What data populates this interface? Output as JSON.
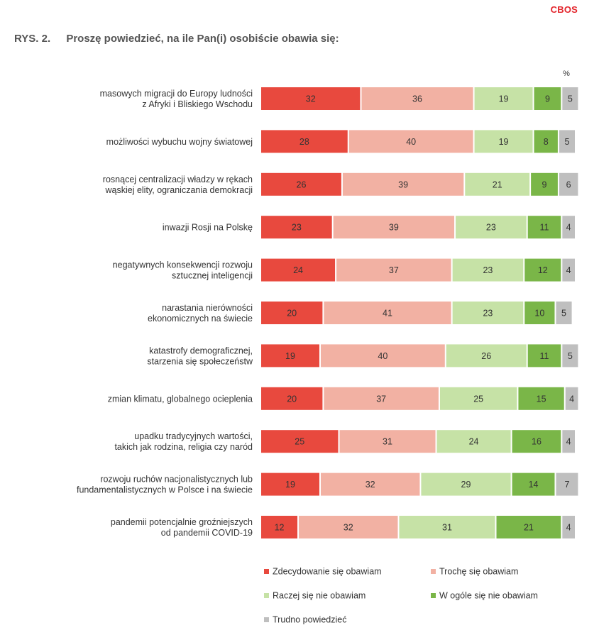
{
  "header": {
    "brand": "CBOS",
    "figure_number": "RYS. 2.",
    "title": "Proszę powiedzieć, na ile Pan(i) osobiście obawia się:"
  },
  "chart_data": {
    "type": "bar",
    "orientation": "horizontal",
    "stacked": true,
    "unit": "%",
    "categories": [
      [
        "masowych migracji do Europy ludności",
        "z Afryki i Bliskiego Wschodu"
      ],
      [
        "możliwości wybuchu wojny światowej"
      ],
      [
        "rosnącej centralizacji władzy w rękach",
        "wąskiej elity, ograniczania demokracji"
      ],
      [
        "inwazji Rosji na Polskę"
      ],
      [
        "negatywnych konsekwencji rozwoju",
        "sztucznej inteligencji"
      ],
      [
        "narastania nierówności",
        "ekonomicznych na świecie"
      ],
      [
        "katastrofy demograficznej,",
        "starzenia się społeczeństw"
      ],
      [
        "zmian klimatu, globalnego ocieplenia"
      ],
      [
        "upadku tradycyjnych wartości,",
        "takich jak rodzina, religia czy naród"
      ],
      [
        "rozwoju ruchów nacjonalistycznych lub",
        "fundamentalistycznych w Polsce i na świecie"
      ],
      [
        "pandemii potencjalnie groźniejszych",
        "od pandemii COVID-19"
      ]
    ],
    "series": [
      {
        "name": "Zdecydowanie się obawiam",
        "color": "#e8493e",
        "values": [
          32,
          28,
          26,
          23,
          24,
          20,
          19,
          20,
          25,
          19,
          12
        ]
      },
      {
        "name": "Trochę się obawiam",
        "color": "#f2b1a3",
        "values": [
          36,
          40,
          39,
          39,
          37,
          41,
          40,
          37,
          31,
          32,
          32
        ]
      },
      {
        "name": "Raczej się nie obawiam",
        "color": "#c6e2a6",
        "values": [
          19,
          19,
          21,
          23,
          23,
          23,
          26,
          25,
          24,
          29,
          31
        ]
      },
      {
        "name": "W ogóle się nie obawiam",
        "color": "#7ab648",
        "values": [
          9,
          8,
          9,
          11,
          12,
          10,
          11,
          15,
          16,
          14,
          21
        ]
      },
      {
        "name": "Trudno powiedzieć",
        "color": "#bfbfbf",
        "values": [
          5,
          5,
          6,
          4,
          4,
          5,
          5,
          4,
          4,
          7,
          4
        ]
      }
    ],
    "legend_position": "bottom",
    "grid": false
  }
}
